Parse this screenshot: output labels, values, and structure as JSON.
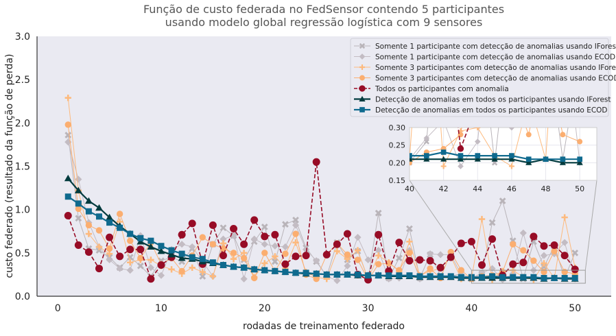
{
  "chart_data": {
    "type": "line",
    "title": "Função de custo federada no FedSensor contendo 5 participantes",
    "subtitle": "usando modelo global regressão logística com 9 sensores",
    "xlabel": "rodadas de treinamento federado",
    "ylabel": "custo federado (resultado da função de perda)",
    "xlim": [
      -2,
      53.5
    ],
    "ylim": [
      0,
      3.0
    ],
    "xticks": [
      0,
      10,
      20,
      30,
      40,
      50
    ],
    "yticks": [
      0.0,
      0.5,
      1.0,
      1.5,
      2.0,
      2.5,
      3.0
    ],
    "x": [
      1,
      2,
      3,
      4,
      5,
      6,
      7,
      8,
      9,
      10,
      11,
      12,
      13,
      14,
      15,
      16,
      17,
      18,
      19,
      20,
      21,
      22,
      23,
      24,
      25,
      26,
      27,
      28,
      29,
      30,
      31,
      32,
      33,
      34,
      35,
      36,
      37,
      38,
      39,
      40,
      41,
      42,
      43,
      44,
      45,
      46,
      47,
      48,
      49,
      50
    ],
    "background": "#EAEAF2",
    "grid": false,
    "legend_position": "top-right",
    "series": [
      {
        "name": "Somente 1 participante com detecção de anomalias usando IForest",
        "color": "#B9B4B9",
        "marker": "x",
        "linestyle": "solid",
        "values": [
          1.86,
          0.9,
          0.55,
          0.53,
          0.45,
          0.33,
          0.45,
          0.35,
          0.23,
          0.41,
          0.45,
          0.4,
          0.55,
          0.23,
          0.6,
          0.79,
          0.7,
          0.42,
          0.63,
          0.8,
          0.4,
          0.83,
          0.88,
          0.56,
          0.4,
          0.23,
          0.62,
          0.42,
          0.52,
          0.2,
          0.96,
          0.21,
          0.44,
          0.78,
          0.21,
          0.48,
          0.24,
          0.23,
          0.26,
          0.2,
          0.26,
          0.85,
          1.1,
          0.64,
          0.2,
          0.63,
          0.34,
          0.58,
          0.21,
          0.5
        ]
      },
      {
        "name": "Somente 1 participante com detecção de anomalias usando ECOD",
        "color": "#C3BCC3",
        "marker": "diamond",
        "linestyle": "solid",
        "values": [
          1.78,
          1.35,
          0.85,
          0.57,
          0.42,
          0.32,
          0.3,
          0.7,
          0.33,
          0.24,
          0.54,
          0.6,
          0.57,
          0.4,
          0.23,
          0.66,
          0.7,
          0.2,
          0.66,
          0.6,
          0.58,
          0.57,
          0.82,
          0.54,
          0.41,
          0.23,
          0.18,
          0.35,
          0.68,
          0.42,
          0.53,
          0.2,
          0.21,
          0.53,
          0.2,
          0.49,
          0.48,
          0.48,
          0.25,
          0.21,
          0.27,
          0.32,
          0.19,
          0.26,
          0.73,
          0.3,
          0.47,
          0.49,
          0.62,
          0.2
        ]
      },
      {
        "name": "Somente 3 participantes com detecção de anomalias usando IForest",
        "color": "#FDBA7E",
        "marker": "plus",
        "linestyle": "solid",
        "values": [
          2.29,
          1.22,
          0.72,
          0.57,
          0.49,
          0.86,
          0.39,
          0.42,
          0.42,
          0.35,
          0.31,
          0.26,
          0.33,
          0.28,
          0.23,
          0.61,
          0.43,
          0.5,
          0.22,
          0.38,
          0.46,
          0.32,
          0.62,
          0.28,
          0.22,
          0.2,
          0.52,
          0.43,
          0.53,
          0.2,
          0.47,
          0.39,
          0.29,
          0.63,
          0.24,
          0.29,
          0.32,
          0.46,
          0.2,
          0.21,
          0.89,
          0.19,
          0.29,
          0.3,
          0.22,
          0.19,
          0.38,
          0.21,
          0.91,
          0.33
        ]
      },
      {
        "name": "Somente 3 participantes com detecção de anomalias usando ECOD",
        "color": "#FBAE70",
        "marker": "circle",
        "linestyle": "solid",
        "values": [
          1.98,
          1.01,
          0.82,
          0.76,
          0.55,
          0.95,
          0.64,
          0.44,
          0.62,
          0.37,
          0.44,
          0.29,
          0.47,
          0.68,
          0.6,
          0.55,
          0.5,
          0.44,
          0.21,
          0.5,
          0.29,
          0.49,
          0.72,
          0.25,
          0.2,
          0.48,
          0.61,
          0.48,
          0.42,
          0.19,
          0.37,
          0.38,
          0.3,
          0.5,
          0.23,
          0.32,
          0.21,
          0.51,
          0.3,
          0.2,
          0.23,
          0.24,
          0.28,
          0.6,
          0.53,
          0.41,
          0.28,
          0.52,
          0.28,
          0.26
        ]
      },
      {
        "name": "Todos os participantes com anomalia",
        "color": "#970C26",
        "marker": "circle",
        "linestyle": "dashed",
        "values": [
          0.93,
          0.59,
          0.51,
          0.32,
          0.68,
          0.46,
          0.54,
          0.54,
          0.2,
          0.36,
          0.45,
          0.71,
          0.84,
          0.37,
          0.82,
          0.47,
          0.78,
          0.6,
          0.88,
          0.69,
          0.71,
          0.37,
          0.46,
          0.47,
          1.55,
          0.48,
          0.6,
          0.72,
          0.25,
          0.19,
          0.71,
          0.29,
          0.62,
          0.41,
          0.42,
          0.41,
          0.33,
          0.45,
          0.61,
          0.63,
          0.36,
          0.66,
          0.24,
          0.37,
          0.39,
          0.69,
          0.58,
          0.59,
          0.47,
          0.31
        ]
      },
      {
        "name": "Detecção de anomalias em todos os participantes usando IForest",
        "color": "#023B3E",
        "marker": "triangle",
        "linestyle": "solid",
        "values": [
          1.36,
          1.22,
          1.1,
          1.02,
          0.91,
          0.81,
          0.72,
          0.63,
          0.57,
          0.52,
          0.48,
          0.44,
          0.43,
          0.4,
          0.38,
          0.36,
          0.34,
          0.33,
          0.31,
          0.3,
          0.29,
          0.28,
          0.27,
          0.26,
          0.26,
          0.25,
          0.25,
          0.25,
          0.24,
          0.24,
          0.24,
          0.23,
          0.23,
          0.23,
          0.22,
          0.22,
          0.22,
          0.22,
          0.21,
          0.21,
          0.21,
          0.21,
          0.21,
          0.21,
          0.21,
          0.21,
          0.2,
          0.21,
          0.2,
          0.2
        ]
      },
      {
        "name": "Detecção de anomalias em todos os participantes usando ECOD",
        "color": "#0F6A8E",
        "marker": "square",
        "linestyle": "solid",
        "values": [
          1.15,
          1.07,
          0.98,
          0.92,
          0.85,
          0.79,
          0.72,
          0.67,
          0.64,
          0.58,
          0.53,
          0.49,
          0.45,
          0.43,
          0.39,
          0.36,
          0.34,
          0.33,
          0.31,
          0.3,
          0.29,
          0.28,
          0.27,
          0.27,
          0.26,
          0.25,
          0.25,
          0.25,
          0.25,
          0.24,
          0.24,
          0.24,
          0.24,
          0.24,
          0.23,
          0.23,
          0.23,
          0.23,
          0.22,
          0.22,
          0.22,
          0.23,
          0.22,
          0.22,
          0.22,
          0.22,
          0.21,
          0.21,
          0.21,
          0.21
        ]
      }
    ],
    "inset": {
      "xlim": [
        40,
        51
      ],
      "ylim": [
        0.15,
        0.3
      ],
      "xticks": [
        40,
        42,
        44,
        46,
        48,
        50
      ],
      "yticks": [
        0.15,
        0.2,
        0.25,
        0.3
      ],
      "ytick_labels": [
        "0.15",
        "0.20",
        "0.25",
        "0.30"
      ]
    }
  }
}
